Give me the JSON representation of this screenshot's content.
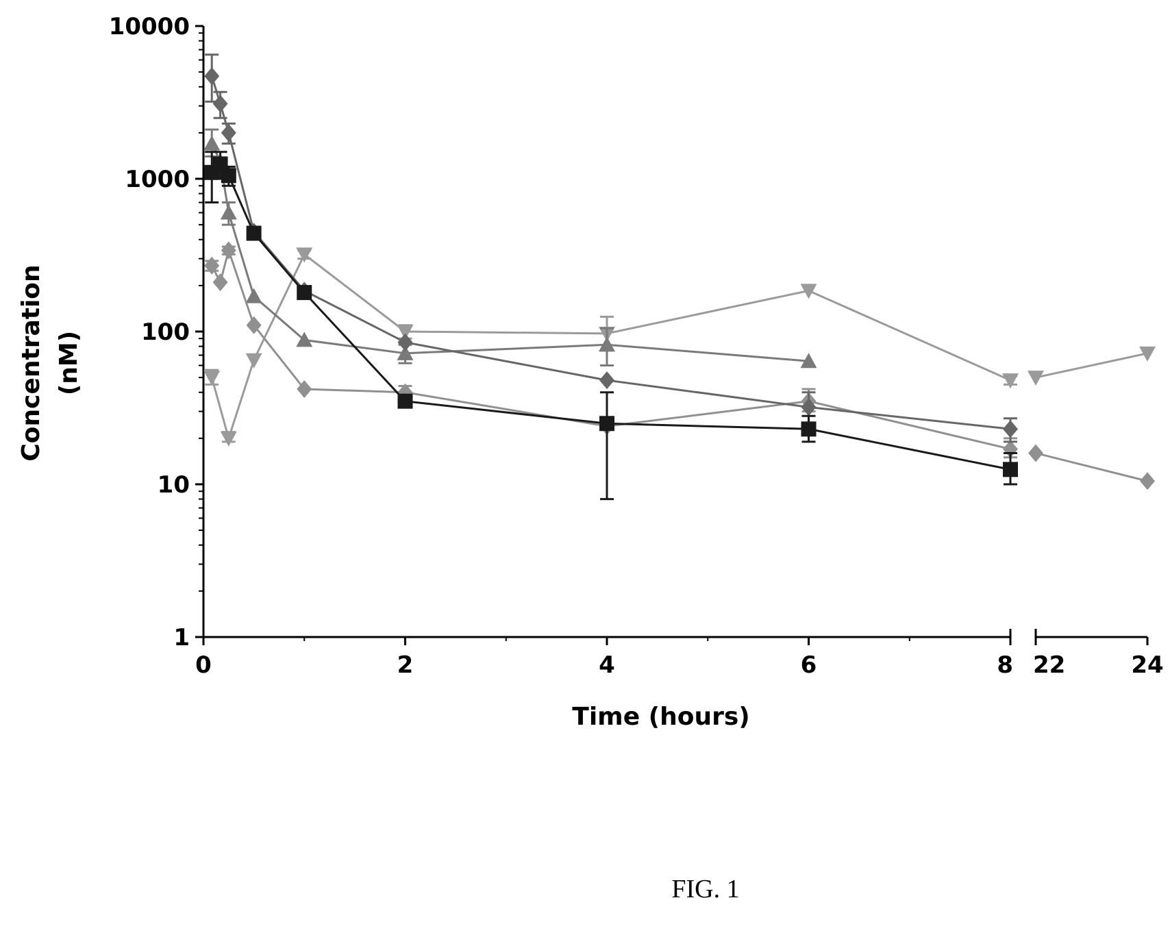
{
  "caption": "FIG. 1",
  "chart_data": {
    "type": "line",
    "title": "",
    "xlabel": "Time (hours)",
    "ylabel_lines": [
      "Concentration",
      "(nM)"
    ],
    "yscale": "log",
    "ylim": [
      1,
      10000
    ],
    "yticks": [
      "1",
      "10",
      "100",
      "1000",
      "10000"
    ],
    "x_segments": [
      {
        "range": [
          0,
          8
        ]
      },
      {
        "range": [
          22,
          24
        ]
      }
    ],
    "xticks": [
      "0",
      "2",
      "4",
      "6",
      "8",
      "22",
      "24"
    ],
    "grid": false,
    "legend": "none",
    "series": [
      {
        "color": "#9a9a9a",
        "marker": "triangle-down",
        "points": [
          [
            0.083,
            50
          ],
          [
            0.25,
            20
          ],
          [
            0.5,
            65
          ],
          [
            1,
            320
          ],
          [
            2,
            100
          ],
          [
            4,
            97
          ],
          [
            6,
            185
          ],
          [
            8,
            48
          ],
          [
            22,
            50
          ],
          [
            24,
            72
          ]
        ],
        "errors": [
          [
            0.083,
            45,
            56
          ],
          [
            0.25,
            19,
            22
          ],
          [
            1,
            300,
            340
          ],
          [
            2,
            90,
            110
          ],
          [
            4,
            75,
            125
          ],
          [
            8,
            45,
            51
          ]
        ]
      },
      {
        "color": "#7a7a7a",
        "marker": "triangle-up",
        "points": [
          [
            0.083,
            1700
          ],
          [
            0.167,
            1300
          ],
          [
            0.25,
            600
          ],
          [
            0.5,
            170
          ],
          [
            1,
            88
          ],
          [
            2,
            72
          ],
          [
            4,
            82
          ],
          [
            6,
            64
          ]
        ],
        "errors": [
          [
            0.083,
            1400,
            2100
          ],
          [
            0.25,
            500,
            700
          ],
          [
            2,
            62,
            82
          ],
          [
            4,
            60,
            105
          ]
        ]
      },
      {
        "color": "#909090",
        "marker": "diamond",
        "points": [
          [
            0.083,
            270
          ],
          [
            0.167,
            210
          ],
          [
            0.25,
            340
          ],
          [
            0.5,
            110
          ],
          [
            1,
            42
          ],
          [
            2,
            40
          ],
          [
            4,
            24
          ],
          [
            6,
            35
          ],
          [
            8,
            17
          ],
          [
            22,
            16
          ],
          [
            24,
            10.5
          ]
        ],
        "errors": [
          [
            0.083,
            250,
            290
          ],
          [
            0.25,
            320,
            360
          ],
          [
            2,
            36,
            44
          ],
          [
            6,
            30,
            42
          ],
          [
            8,
            15,
            20
          ]
        ]
      },
      {
        "color": "#666666",
        "marker": "diamond",
        "points": [
          [
            0.083,
            4700
          ],
          [
            0.167,
            3100
          ],
          [
            0.25,
            2000
          ],
          [
            0.5,
            450
          ],
          [
            1,
            185
          ],
          [
            2,
            85
          ],
          [
            4,
            48
          ],
          [
            6,
            32
          ],
          [
            8,
            23
          ]
        ],
        "errors": [
          [
            0.083,
            3200,
            6500
          ],
          [
            0.167,
            2500,
            3700
          ],
          [
            0.25,
            1700,
            2300
          ],
          [
            6,
            25,
            40
          ],
          [
            8,
            19,
            27
          ]
        ]
      },
      {
        "color": "#1a1a1a",
        "marker": "square",
        "points": [
          [
            0.083,
            1100
          ],
          [
            0.167,
            1250
          ],
          [
            0.25,
            1050
          ],
          [
            0.5,
            440
          ],
          [
            1,
            180
          ],
          [
            2,
            35
          ],
          [
            4,
            25
          ],
          [
            6,
            23
          ],
          [
            8,
            12.5
          ]
        ],
        "errors": [
          [
            0.083,
            700,
            1500
          ],
          [
            0.167,
            1000,
            1500
          ],
          [
            0.25,
            900,
            1200
          ],
          [
            4,
            8,
            40
          ],
          [
            6,
            19,
            28
          ],
          [
            8,
            10,
            16
          ]
        ]
      }
    ]
  }
}
